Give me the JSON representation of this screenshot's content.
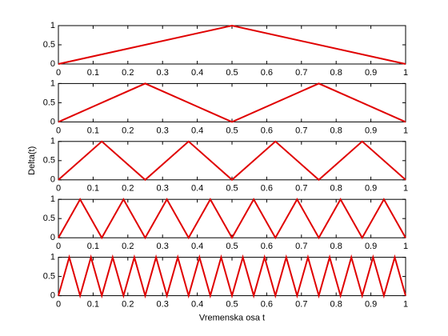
{
  "chart_data": [
    {
      "type": "line",
      "x": [
        0,
        0.5,
        1
      ],
      "values": [
        0,
        1,
        0
      ],
      "color": "#e00000",
      "xlim": [
        0,
        1
      ],
      "ylim": [
        0,
        1
      ],
      "xticks": [
        0,
        0.1,
        0.2,
        0.3,
        0.4,
        0.5,
        0.6,
        0.7,
        0.8,
        0.9,
        1
      ],
      "yticks": [
        0,
        0.5,
        1
      ]
    },
    {
      "type": "line",
      "x": [
        0,
        0.25,
        0.5,
        0.75,
        1
      ],
      "values": [
        0,
        1,
        0,
        1,
        0
      ],
      "color": "#e00000",
      "xlim": [
        0,
        1
      ],
      "ylim": [
        0,
        1
      ],
      "xticks": [
        0,
        0.1,
        0.2,
        0.3,
        0.4,
        0.5,
        0.6,
        0.7,
        0.8,
        0.9,
        1
      ],
      "yticks": [
        0,
        0.5,
        1
      ]
    },
    {
      "type": "line",
      "x": [
        0,
        0.125,
        0.25,
        0.375,
        0.5,
        0.625,
        0.75,
        0.875,
        1
      ],
      "values": [
        0,
        1,
        0,
        1,
        0,
        1,
        0,
        1,
        0
      ],
      "color": "#e00000",
      "xlim": [
        0,
        1
      ],
      "ylim": [
        0,
        1
      ],
      "xticks": [
        0,
        0.1,
        0.2,
        0.3,
        0.4,
        0.5,
        0.6,
        0.7,
        0.8,
        0.9,
        1
      ],
      "yticks": [
        0,
        0.5,
        1
      ],
      "ylabel": "Delta(t)"
    },
    {
      "type": "line",
      "x": [
        0,
        0.0625,
        0.125,
        0.1875,
        0.25,
        0.3125,
        0.375,
        0.4375,
        0.5,
        0.5625,
        0.625,
        0.6875,
        0.75,
        0.8125,
        0.875,
        0.9375,
        1
      ],
      "values": [
        0,
        1,
        0,
        1,
        0,
        1,
        0,
        1,
        0,
        1,
        0,
        1,
        0,
        1,
        0,
        1,
        0
      ],
      "color": "#e00000",
      "xlim": [
        0,
        1
      ],
      "ylim": [
        0,
        1
      ],
      "xticks": [
        0,
        0.1,
        0.2,
        0.3,
        0.4,
        0.5,
        0.6,
        0.7,
        0.8,
        0.9,
        1
      ],
      "yticks": [
        0,
        0.5,
        1
      ]
    },
    {
      "type": "line",
      "x": [
        0,
        0.03125,
        0.0625,
        0.09375,
        0.125,
        0.15625,
        0.1875,
        0.21875,
        0.25,
        0.28125,
        0.3125,
        0.34375,
        0.375,
        0.40625,
        0.4375,
        0.46875,
        0.5,
        0.53125,
        0.5625,
        0.59375,
        0.625,
        0.65625,
        0.6875,
        0.71875,
        0.75,
        0.78125,
        0.8125,
        0.84375,
        0.875,
        0.90625,
        0.9375,
        0.96875,
        1
      ],
      "values": [
        0,
        1,
        0,
        1,
        0,
        1,
        0,
        1,
        0,
        1,
        0,
        1,
        0,
        1,
        0,
        1,
        0,
        1,
        0,
        1,
        0,
        1,
        0,
        1,
        0,
        1,
        0,
        1,
        0,
        1,
        0,
        1,
        0
      ],
      "color": "#e00000",
      "xlim": [
        0,
        1
      ],
      "ylim": [
        0,
        1
      ],
      "xticks": [
        0,
        0.1,
        0.2,
        0.3,
        0.4,
        0.5,
        0.6,
        0.7,
        0.8,
        0.9,
        1
      ],
      "yticks": [
        0,
        0.5,
        1
      ],
      "xlabel": "Vremenska osa t"
    }
  ]
}
